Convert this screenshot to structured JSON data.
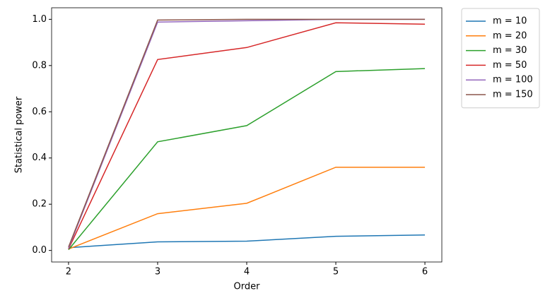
{
  "chart_data": {
    "type": "line",
    "x_label": "Order",
    "y_label": "Statistical power",
    "x": [
      2,
      3,
      4,
      5,
      6
    ],
    "series": [
      {
        "name": "m = 10",
        "color": "#1f77b4",
        "values": [
          0.012,
          0.037,
          0.04,
          0.061,
          0.067
        ]
      },
      {
        "name": "m = 20",
        "color": "#ff7f0e",
        "values": [
          0.006,
          0.159,
          0.204,
          0.36,
          0.36
        ]
      },
      {
        "name": "m = 30",
        "color": "#2ca02c",
        "values": [
          0.003,
          0.47,
          0.54,
          0.774,
          0.787
        ]
      },
      {
        "name": "m = 50",
        "color": "#d62728",
        "values": [
          0.006,
          0.826,
          0.878,
          0.985,
          0.979
        ]
      },
      {
        "name": "m = 100",
        "color": "#9467bd",
        "values": [
          0.009,
          0.988,
          0.994,
          1.0,
          1.0
        ]
      },
      {
        "name": "m = 150",
        "color": "#8c564b",
        "values": [
          0.015,
          0.997,
          1.0,
          1.0,
          1.0
        ]
      }
    ],
    "xlim": [
      1.81,
      6.19
    ],
    "ylim": [
      -0.05,
      1.05
    ],
    "xticks": [
      2,
      3,
      4,
      5,
      6
    ],
    "yticks": [
      {
        "value": 0,
        "label": "0.0"
      },
      0.2,
      0.4,
      0.6,
      0.8,
      {
        "value": 1,
        "label": "1.0"
      }
    ],
    "legend_position": "outside-upper-right"
  }
}
